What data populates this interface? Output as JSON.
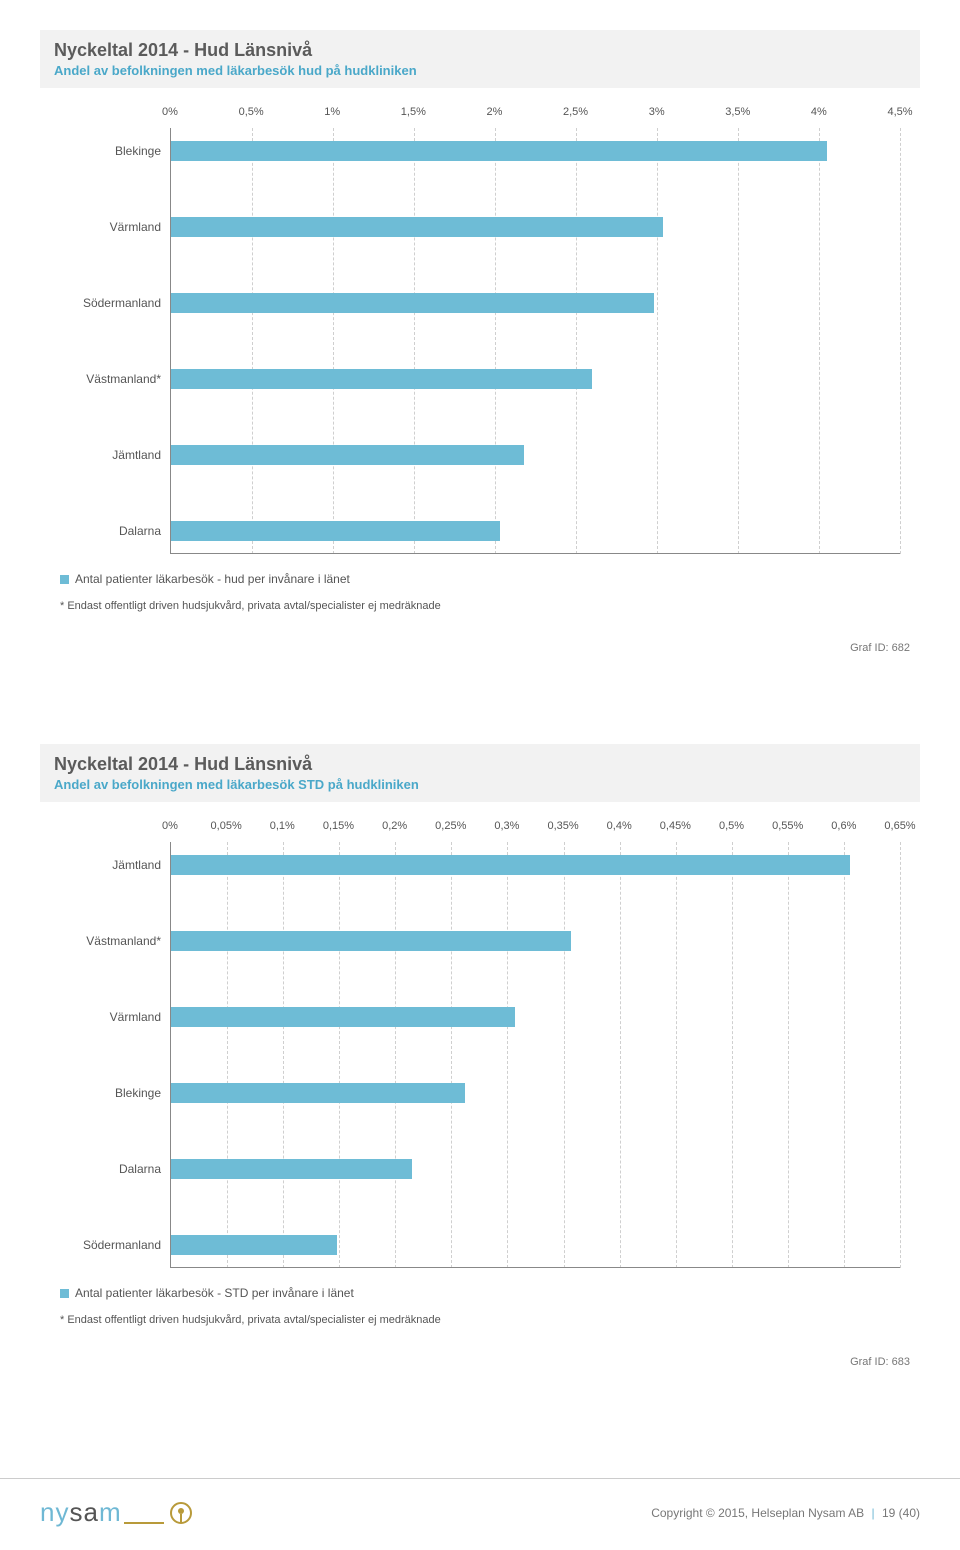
{
  "chart1": {
    "type": "bar-horizontal",
    "title": "Nyckeltal 2014 - Hud Länsnivå",
    "subtitle": "Andel av befolkningen med läkarbesök hud på hudkliniken",
    "x_ticks": [
      "0%",
      "0,5%",
      "1%",
      "1,5%",
      "2%",
      "2,5%",
      "3%",
      "3,5%",
      "4%",
      "4,5%"
    ],
    "x_max": 4.5,
    "bar_color": "#6ebcd6",
    "grid_color": "#cfcfcf",
    "background_color": "#ffffff",
    "label_fontsize": 12,
    "tick_fontsize": 11,
    "bars": [
      {
        "label": "Blekinge",
        "value": 4.05
      },
      {
        "label": "Värmland",
        "value": 3.04
      },
      {
        "label": "Södermanland",
        "value": 2.98
      },
      {
        "label": "Västmanland*",
        "value": 2.6
      },
      {
        "label": "Jämtland",
        "value": 2.18
      },
      {
        "label": "Dalarna",
        "value": 2.03
      }
    ],
    "legend_label": "Antal patienter läkarbesök - hud per invånare i länet",
    "legend_color": "#6ebcd6",
    "footnote": "* Endast offentligt driven hudsjukvård, privata avtal/specialister ej medräknade",
    "graf_id": "Graf ID: 682"
  },
  "chart2": {
    "type": "bar-horizontal",
    "title": "Nyckeltal 2014 - Hud Länsnivå",
    "subtitle": "Andel av befolkningen med läkarbesök STD på hudkliniken",
    "x_ticks": [
      "0%",
      "0,05%",
      "0,1%",
      "0,15%",
      "0,2%",
      "0,25%",
      "0,3%",
      "0,35%",
      "0,4%",
      "0,45%",
      "0,5%",
      "0,55%",
      "0,6%",
      "0,65%"
    ],
    "x_max": 0.65,
    "bar_color": "#6ebcd6",
    "grid_color": "#cfcfcf",
    "background_color": "#ffffff",
    "label_fontsize": 12,
    "tick_fontsize": 11,
    "bars": [
      {
        "label": "Jämtland",
        "value": 0.605
      },
      {
        "label": "Västmanland*",
        "value": 0.357
      },
      {
        "label": "Värmland",
        "value": 0.307
      },
      {
        "label": "Blekinge",
        "value": 0.262
      },
      {
        "label": "Dalarna",
        "value": 0.215
      },
      {
        "label": "Södermanland",
        "value": 0.148
      }
    ],
    "legend_label": "Antal patienter läkarbesök - STD per invånare i länet",
    "legend_color": "#6ebcd6",
    "footnote": "* Endast offentligt driven hudsjukvård, privata avtal/specialister ej medräknade",
    "graf_id": "Graf ID: 683"
  },
  "footer": {
    "logo_text_1": "ny",
    "logo_text_2": "sa",
    "logo_text_3": "m",
    "copyright": "Copyright © 2015, Helseplan Nysam AB",
    "page": "19 (40)"
  }
}
